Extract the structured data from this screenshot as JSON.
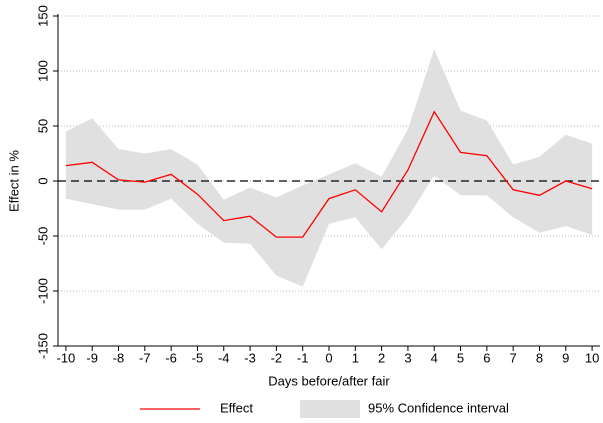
{
  "chart_data": {
    "type": "line",
    "x_label": "Days before/after fair",
    "y_label": "Effect in %",
    "x": [
      -10,
      -9,
      -8,
      -7,
      -6,
      -5,
      -4,
      -3,
      -2,
      -1,
      0,
      1,
      2,
      3,
      4,
      5,
      6,
      7,
      8,
      9,
      10
    ],
    "series": [
      {
        "name": "Effect",
        "color": "#ff0000",
        "values": [
          14,
          17,
          1,
          -1,
          6,
          -12,
          -36,
          -32,
          -51,
          -51,
          -16,
          -8,
          -28,
          10,
          63,
          26,
          23,
          -8,
          -13,
          0,
          -7
        ]
      }
    ],
    "bands": [
      {
        "name": "95% Confidence interval",
        "color": "#e0e0e0",
        "upper": [
          45,
          57,
          29,
          25,
          29,
          15,
          -17,
          -6,
          -15,
          -4,
          6,
          16,
          4,
          47,
          120,
          64,
          55,
          15,
          22,
          42,
          34
        ],
        "lower": [
          -16,
          -21,
          -26,
          -26,
          -16,
          -39,
          -56,
          -57,
          -86,
          -96,
          -39,
          -33,
          -62,
          -33,
          5,
          -13,
          -13,
          -33,
          -47,
          -41,
          -49
        ]
      }
    ],
    "hline": 0,
    "xlim": [
      -10.3,
      10.3
    ],
    "xticks": [
      -10,
      -9,
      -8,
      -7,
      -6,
      -5,
      -4,
      -3,
      -2,
      -1,
      0,
      1,
      2,
      3,
      4,
      5,
      6,
      7,
      8,
      9,
      10
    ],
    "ylim": [
      -150,
      150
    ],
    "yticks": [
      -150,
      -100,
      -50,
      0,
      50,
      100,
      150
    ],
    "grid": true,
    "legend": "bottom"
  }
}
